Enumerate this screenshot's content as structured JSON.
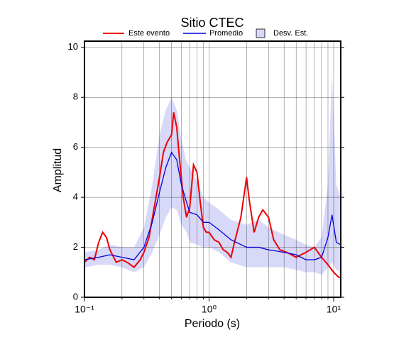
{
  "chart_data": {
    "type": "line",
    "title": "Sitio CTEC",
    "x_label": "Periodo (s)",
    "y_label": "Amplitud",
    "log_x": true,
    "grid": true,
    "xlim": [
      0.1,
      11.4
    ],
    "ylim": [
      0,
      10.25
    ],
    "xticks": [
      {
        "value": 0.1,
        "label": "10⁻¹"
      },
      {
        "value": 1,
        "label": "10⁰"
      },
      {
        "value": 10,
        "label": "10¹"
      }
    ],
    "xminorticks": [
      0.2,
      0.3,
      0.4,
      0.5,
      0.6,
      0.7,
      0.8,
      0.9,
      2,
      3,
      4,
      5,
      6,
      7,
      8,
      9
    ],
    "yticks": [
      0,
      2,
      4,
      6,
      8,
      10
    ],
    "band": {
      "name": "Desv. Est.",
      "color": "#d8d8f8",
      "x": [
        0.1,
        0.13,
        0.16,
        0.2,
        0.25,
        0.3,
        0.35,
        0.4,
        0.45,
        0.5,
        0.55,
        0.6,
        0.66,
        0.7,
        0.8,
        0.9,
        1.0,
        1.2,
        1.5,
        2.0,
        2.5,
        3,
        4,
        5,
        6,
        7,
        8,
        9,
        9.7,
        10.5,
        11.4
      ],
      "upper": [
        1.8,
        1.9,
        2.1,
        2.0,
        2.0,
        2.8,
        4.5,
        6.5,
        7.5,
        8.0,
        7.5,
        6.3,
        5.4,
        5.2,
        4.6,
        4.0,
        3.8,
        3.5,
        3.1,
        2.9,
        3.1,
        2.8,
        2.5,
        2.3,
        2.1,
        2.0,
        2.4,
        4.5,
        9.0,
        4.5,
        4.0
      ],
      "lower": [
        1.2,
        1.3,
        1.3,
        1.2,
        1.0,
        1.2,
        1.8,
        2.5,
        3.2,
        3.6,
        3.5,
        2.9,
        2.6,
        2.2,
        2.1,
        2.0,
        2.0,
        1.8,
        1.4,
        1.2,
        1.2,
        1.2,
        1.2,
        1.1,
        1.0,
        1.0,
        0.9,
        1.2,
        1.4,
        1.1,
        1.0
      ]
    },
    "series": [
      {
        "name": "Este evento",
        "color": "#ee0000",
        "x": [
          0.1,
          0.11,
          0.12,
          0.13,
          0.14,
          0.15,
          0.16,
          0.18,
          0.2,
          0.22,
          0.25,
          0.28,
          0.3,
          0.33,
          0.36,
          0.4,
          0.43,
          0.46,
          0.5,
          0.52,
          0.55,
          0.58,
          0.62,
          0.66,
          0.7,
          0.75,
          0.8,
          0.85,
          0.9,
          0.95,
          1.0,
          1.1,
          1.2,
          1.3,
          1.4,
          1.5,
          1.6,
          1.8,
          2.0,
          2.1,
          2.3,
          2.5,
          2.7,
          3.0,
          3.3,
          3.7,
          4.2,
          5.0,
          6,
          7,
          8,
          9,
          10,
          11,
          11.4
        ],
        "values": [
          1.4,
          1.6,
          1.5,
          2.2,
          2.6,
          2.4,
          1.9,
          1.4,
          1.5,
          1.4,
          1.2,
          1.5,
          1.8,
          2.4,
          3.5,
          4.8,
          5.8,
          6.2,
          6.5,
          7.4,
          6.8,
          5.5,
          4.0,
          3.2,
          3.6,
          5.3,
          5.0,
          3.8,
          2.8,
          2.6,
          2.6,
          2.3,
          2.2,
          1.9,
          1.8,
          1.6,
          2.2,
          3.2,
          4.8,
          3.9,
          2.6,
          3.2,
          3.5,
          3.2,
          2.3,
          1.9,
          1.8,
          1.6,
          1.8,
          2.0,
          1.6,
          1.3,
          1.0,
          0.8,
          0.8
        ]
      },
      {
        "name": "Promedio",
        "color": "#0000dd",
        "x": [
          0.1,
          0.13,
          0.16,
          0.2,
          0.25,
          0.3,
          0.35,
          0.4,
          0.45,
          0.5,
          0.55,
          0.6,
          0.66,
          0.7,
          0.8,
          0.9,
          1.0,
          1.2,
          1.5,
          2.0,
          2.5,
          3,
          4,
          5,
          6,
          7,
          8,
          9,
          9.7,
          10.5,
          11.4
        ],
        "values": [
          1.5,
          1.6,
          1.7,
          1.6,
          1.5,
          2.0,
          3.0,
          4.2,
          5.2,
          5.8,
          5.5,
          4.5,
          3.8,
          3.4,
          3.3,
          3.0,
          3.0,
          2.7,
          2.3,
          2.0,
          2.0,
          1.9,
          1.8,
          1.7,
          1.5,
          1.5,
          1.6,
          2.4,
          3.3,
          2.2,
          2.1
        ]
      }
    ]
  }
}
